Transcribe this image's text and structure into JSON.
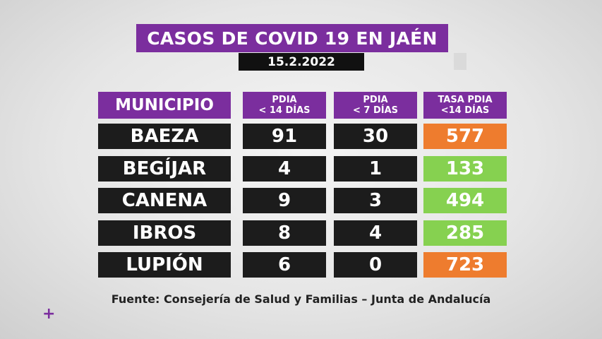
{
  "title": "CASOS DE COVID 19 EN JAÉN",
  "date": "15.2.2022",
  "headers": {
    "municipio": "MUNICIPIO",
    "pdia14_line1": "PDIA",
    "pdia14_line2": "< 14 DÍAS",
    "pdia7_line1": "PDIA",
    "pdia7_line2": "< 7 DÍAS",
    "tasa_line1": "TASA PDIA",
    "tasa_line2": "<14 DÍAS"
  },
  "rows": [
    {
      "municipio": "BAEZA",
      "pdia14": "91",
      "pdia7": "30",
      "tasa": "577",
      "tasa_color": "#ee7c2e"
    },
    {
      "municipio": "BEGÍJAR",
      "pdia14": "4",
      "pdia7": "1",
      "tasa": "133",
      "tasa_color": "#86d150"
    },
    {
      "municipio": "CANENA",
      "pdia14": "9",
      "pdia7": "3",
      "tasa": "494",
      "tasa_color": "#86d150"
    },
    {
      "municipio": "IBROS",
      "pdia14": "8",
      "pdia7": "4",
      "tasa": "285",
      "tasa_color": "#86d150"
    },
    {
      "municipio": "LUPIÓN",
      "pdia14": "6",
      "pdia7": "0",
      "tasa": "723",
      "tasa_color": "#ee7c2e"
    }
  ],
  "source": "Fuente: Consejería de Salud y Familias – Junta de Andalucía",
  "corner_mark": "+",
  "colors": {
    "brand_purple": "#7b2e9e",
    "dark_cell": "#1c1c1c",
    "high_rate": "#ee7c2e",
    "low_rate": "#86d150"
  }
}
